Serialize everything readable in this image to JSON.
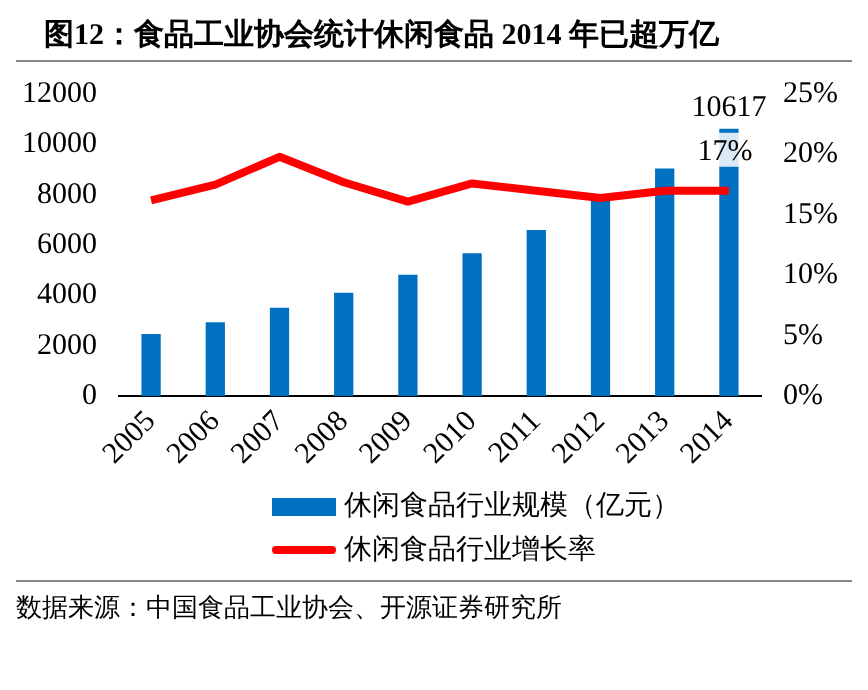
{
  "chart_data": {
    "type": "bar",
    "title": "图12：食品工业协会统计休闲食品 2014 年已超万亿",
    "categories": [
      "2005",
      "2006",
      "2007",
      "2008",
      "2009",
      "2010",
      "2011",
      "2012",
      "2013",
      "2014"
    ],
    "series": [
      {
        "name": "休闲食品行业规模（亿元）",
        "color": "#0070c0",
        "values": [
          2470,
          2930,
          3510,
          4110,
          4820,
          5670,
          6600,
          7840,
          9040,
          10617
        ],
        "value_labels": [
          null,
          null,
          null,
          null,
          null,
          null,
          null,
          null,
          null,
          "10617"
        ]
      },
      {
        "name": "休闲食品行业增长率",
        "type": "line",
        "axis": "y2",
        "color": "#ff0000",
        "values": [
          16.2,
          17.5,
          19.8,
          17.7,
          16.1,
          17.6,
          17.0,
          16.4,
          17.0,
          17
        ],
        "value_labels": [
          null,
          null,
          null,
          null,
          null,
          null,
          null,
          null,
          null,
          "17%"
        ]
      }
    ],
    "ylim": [
      0,
      12000
    ],
    "yticks": [
      0,
      2000,
      4000,
      6000,
      8000,
      10000,
      12000
    ],
    "y2lim": [
      0,
      25
    ],
    "y2ticks": [
      {
        "value": 0,
        "label": "0%"
      },
      {
        "value": 5,
        "label": "5%"
      },
      {
        "value": 10,
        "label": "10%"
      },
      {
        "value": 15,
        "label": "15%"
      },
      {
        "value": 20,
        "label": "20%"
      },
      {
        "value": 25,
        "label": "25%"
      }
    ],
    "grid": false,
    "legend": "bottom",
    "marker": "none",
    "line_style": "solid",
    "annotations": [
      "数据来源：中国食品工业协会、开源证券研究所"
    ]
  }
}
